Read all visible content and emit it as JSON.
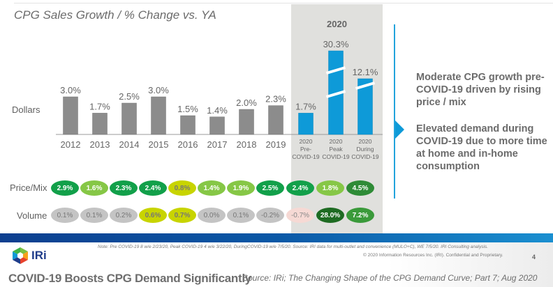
{
  "chart_data": {
    "type": "bar",
    "title": "CPG Sales Growth / % Change vs. YA",
    "row_label": "Dollars",
    "group_header": "2020",
    "categories": [
      "2012",
      "2013",
      "2014",
      "2015",
      "2016",
      "2017",
      "2018",
      "2019",
      "2020 Pre-COVID-19",
      "2020 Peak COVID-19",
      "2020 During COVID-19"
    ],
    "category_lines": [
      [
        "2012"
      ],
      [
        "2013"
      ],
      [
        "2014"
      ],
      [
        "2015"
      ],
      [
        "2016"
      ],
      [
        "2017"
      ],
      [
        "2018"
      ],
      [
        "2019"
      ],
      [
        "2020",
        "Pre-",
        "COVID-19"
      ],
      [
        "2020",
        "Peak",
        "COVID-19"
      ],
      [
        "2020",
        "During",
        "COVID-19"
      ]
    ],
    "values": [
      3.0,
      1.7,
      2.5,
      3.0,
      1.5,
      1.4,
      2.0,
      2.3,
      1.7,
      30.3,
      12.1
    ],
    "value_labels": [
      "3.0%",
      "1.7%",
      "2.5%",
      "3.0%",
      "1.5%",
      "1.4%",
      "2.0%",
      "2.3%",
      "1.7%",
      "30.3%",
      "12.1%"
    ],
    "broken_axis_bars": [
      9,
      10
    ],
    "series_colors": {
      "historical": "#8c8c8c",
      "covid_2020": "#0e9ad8"
    },
    "unit": "%",
    "xlabel": "",
    "ylabel": "",
    "price_mix": {
      "label": "Price/Mix",
      "values": [
        2.9,
        1.6,
        2.3,
        2.4,
        0.8,
        1.4,
        1.9,
        2.5,
        2.4,
        1.8,
        4.5
      ],
      "labels": [
        "2.9%",
        "1.6%",
        "2.3%",
        "2.4%",
        "0.8%",
        "1.4%",
        "1.9%",
        "2.5%",
        "2.4%",
        "1.8%",
        "4.5%"
      ],
      "colors": [
        "#12a04a",
        "#86c746",
        "#12a04a",
        "#12a04a",
        "#c8d400",
        "#86c746",
        "#86c746",
        "#12a04a",
        "#12a04a",
        "#86c746",
        "#2e8b36"
      ]
    },
    "volume": {
      "label": "Volume",
      "values": [
        0.1,
        0.1,
        0.2,
        0.6,
        0.7,
        0.0,
        0.1,
        -0.2,
        -0.7,
        28.0,
        7.2
      ],
      "labels": [
        "0.1%",
        "0.1%",
        "0.2%",
        "0.6%",
        "0.7%",
        "0.0%",
        "0.1%",
        "-0.2%",
        "-0.7%",
        "28.0%",
        "7.2%"
      ],
      "colors": [
        "#c4c4c4",
        "#c4c4c4",
        "#c4c4c4",
        "#c8d400",
        "#c8d400",
        "#c4c4c4",
        "#c4c4c4",
        "#c4c4c4",
        "#f6d9d4",
        "#1e6b22",
        "#3a9a3a"
      ]
    }
  },
  "callouts": [
    "Moderate CPG growth pre-COVID-19 driven by rising price / mix",
    "Elevated demand during COVID-19 due to more time at home and in-home consumption"
  ],
  "footer": {
    "logo_text": "IRi",
    "note": "Note: Pre COVID-19 8 w/e 2/23/20, Peak COVID-19 4 w/e 3/22/20, DuringCOVID-19 w/e 7/5/20.  Source: IRI data for multi-outlet and convenience (MULO+C), WE 7/5/20. IRI Consulting analysis.",
    "copyright": "© 2020 Information Resources Inc. (IRI). Confidential and Proprietary.",
    "page_number": "4"
  },
  "slide_title": "COVID-19 Boosts CPG Demand Significantly",
  "source": "Source: IRi; The Changing Shape of the CPG Demand Curve; Part 7; Aug 2020"
}
